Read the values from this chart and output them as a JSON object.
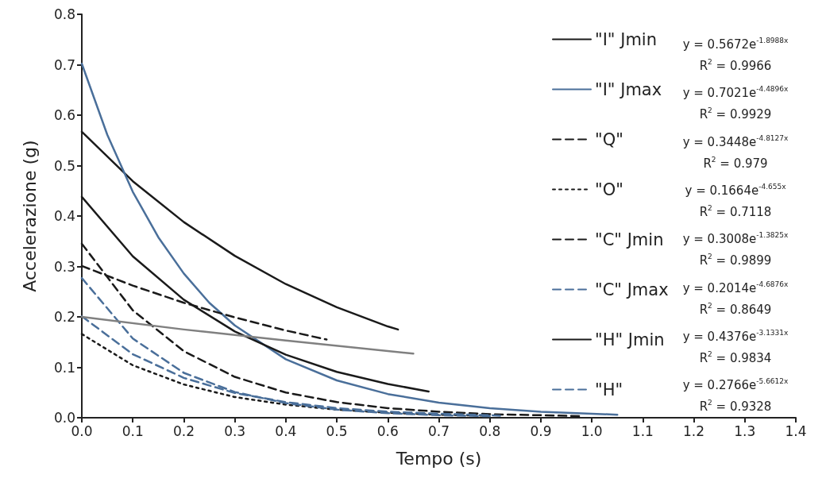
{
  "chart_data": {
    "type": "line",
    "xlabel": "Tempo (s)",
    "ylabel": "Accelerazione (g)",
    "xlim": [
      0,
      1.4
    ],
    "ylim": [
      0,
      0.8
    ],
    "xticks": [
      {
        "value": 0,
        "label": "0.0"
      },
      0.1,
      0.2,
      0.3,
      0.4,
      0.5,
      0.6,
      0.7,
      0.8,
      0.9,
      {
        "value": 1,
        "label": "1.0"
      },
      1.1,
      1.2,
      1.3,
      1.4
    ],
    "yticks": [
      {
        "value": 0,
        "label": "0.0"
      },
      0.1,
      0.2,
      0.3,
      0.4,
      0.5,
      0.6,
      0.7,
      0.8
    ],
    "grid": false,
    "legend": "top right",
    "marker": "none",
    "series": [
      {
        "name": "\"I\" Jmin",
        "color": "#1a1a1a",
        "line_style": "solid",
        "x": [
          0,
          0.1,
          0.2,
          0.3,
          0.4,
          0.5,
          0.6,
          0.62
        ],
        "values": [
          0.567,
          0.469,
          0.388,
          0.321,
          0.265,
          0.219,
          0.181,
          0.175
        ]
      },
      {
        "name": "\"I\" Jmax",
        "color": "#4a6f9a",
        "line_style": "solid",
        "x": [
          0,
          0.05,
          0.1,
          0.15,
          0.2,
          0.25,
          0.3,
          0.4,
          0.5,
          0.6,
          0.7,
          0.8,
          0.9,
          1.0,
          1.05
        ],
        "values": [
          0.702,
          0.561,
          0.448,
          0.358,
          0.286,
          0.228,
          0.183,
          0.116,
          0.074,
          0.047,
          0.03,
          0.019,
          0.012,
          0.008,
          0.006
        ]
      },
      {
        "name": "\"Q\"",
        "color": "#1a1a1a",
        "line_style": "dashed",
        "x": [
          0,
          0.1,
          0.2,
          0.3,
          0.4,
          0.5,
          0.6,
          0.7,
          0.8,
          0.9,
          0.98
        ],
        "values": [
          0.345,
          0.213,
          0.132,
          0.081,
          0.05,
          0.031,
          0.019,
          0.012,
          0.007,
          0.005,
          0.003
        ]
      },
      {
        "name": "\"O\"",
        "color": "#1a1a1a",
        "line_style": "dotted",
        "x": [
          0,
          0.1,
          0.2,
          0.3,
          0.4,
          0.5,
          0.6,
          0.7,
          0.8
        ],
        "values": [
          0.166,
          0.104,
          0.066,
          0.041,
          0.026,
          0.016,
          0.01,
          0.006,
          0.004
        ]
      },
      {
        "name": "\"C\" Jmin",
        "color": "#1a1a1a",
        "line_style": "dashed",
        "x": [
          0,
          0.1,
          0.2,
          0.3,
          0.4,
          0.48
        ],
        "values": [
          0.301,
          0.262,
          0.228,
          0.199,
          0.173,
          0.155
        ]
      },
      {
        "name": "\"C\" Jmax",
        "color": "#4a6f9a",
        "line_style": "dashed",
        "x": [
          0,
          0.1,
          0.2,
          0.3,
          0.4,
          0.5,
          0.6,
          0.7,
          0.8,
          0.82
        ],
        "values": [
          0.201,
          0.126,
          0.079,
          0.049,
          0.031,
          0.019,
          0.012,
          0.008,
          0.005,
          0.004
        ]
      },
      {
        "name": "\"H\" Jmin",
        "color": "#1a1a1a",
        "line_style": "solid",
        "x": [
          0,
          0.1,
          0.2,
          0.3,
          0.4,
          0.5,
          0.6,
          0.68
        ],
        "values": [
          0.438,
          0.32,
          0.234,
          0.171,
          0.125,
          0.091,
          0.067,
          0.052
        ]
      },
      {
        "name": "\"H\"",
        "color": "#4a6f9a",
        "line_style": "dashed",
        "x": [
          0,
          0.1,
          0.2,
          0.3,
          0.4,
          0.5,
          0.6,
          0.7,
          0.8
        ],
        "values": [
          0.277,
          0.157,
          0.089,
          0.051,
          0.029,
          0.016,
          0.009,
          0.005,
          0.003
        ]
      },
      {
        "color": "#808080",
        "line_style": "solid",
        "x": [
          0,
          0.2,
          0.4,
          0.65
        ],
        "values": [
          0.2,
          0.175,
          0.153,
          0.127
        ]
      }
    ],
    "annotations": [
      "y = 0.5672e$^{-1.8988x}$",
      "R$^{2}$ = 0.9966",
      "y = 0.7021e$^{-4.4896x}$",
      "R$^{2}$ = 0.9929",
      "y = 0.3448e$^{-4.8127x}$",
      "R$^{2}$ = 0.979",
      "y = 0.1664e$^{-4.655x}$",
      "R$^{2}$ = 0.7118",
      "y = 0.3008e$^{-1.3825x}$",
      "R$^{2}$ = 0.9899",
      "y = 0.2014e$^{-4.6876x}$",
      "R$^{2}$ = 0.8649",
      "y = 0.4376e$^{-3.1331x}$",
      "R$^{2}$ = 0.9834",
      "y = 0.2766e$^{-5.6612x}$",
      "R$^{2}$ = 0.9328"
    ]
  }
}
